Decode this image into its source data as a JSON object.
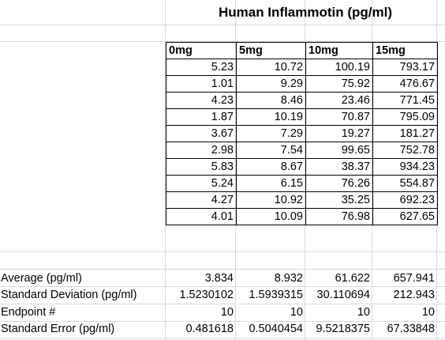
{
  "title": "Human Inflammotin (pg/ml)",
  "columns": [
    "0mg",
    "5mg",
    "10mg",
    "15mg"
  ],
  "rows": [
    [
      "5.23",
      "10.72",
      "100.19",
      "793.17"
    ],
    [
      "1.01",
      "9.29",
      "75.92",
      "476.67"
    ],
    [
      "4.23",
      "8.46",
      "23.46",
      "771.45"
    ],
    [
      "1.87",
      "10.19",
      "70.87",
      "795.09"
    ],
    [
      "3.67",
      "7.29",
      "19.27",
      "181.27"
    ],
    [
      "2.98",
      "7.54",
      "99.65",
      "752.78"
    ],
    [
      "5.83",
      "8.67",
      "38.37",
      "934.23"
    ],
    [
      "5.24",
      "6.15",
      "76.26",
      "554.87"
    ],
    [
      "4.27",
      "10.92",
      "35.25",
      "692.23"
    ],
    [
      "4.01",
      "10.09",
      "76.98",
      "627.65"
    ]
  ],
  "stats": [
    {
      "label": "Average (pg/ml)",
      "values": [
        "3.834",
        "8.932",
        "61.622",
        "657.941"
      ]
    },
    {
      "label": "Standard Deviation (pg/ml)",
      "values": [
        "1.5230102",
        "1.5939315",
        "30.110694",
        "212.943"
      ]
    },
    {
      "label": "Endpoint #",
      "values": [
        "10",
        "10",
        "10",
        "10"
      ]
    },
    {
      "label": "Standard Error (pg/ml)",
      "values": [
        "0.481618",
        "0.5040454",
        "9.5218375",
        "67.33848"
      ]
    }
  ]
}
